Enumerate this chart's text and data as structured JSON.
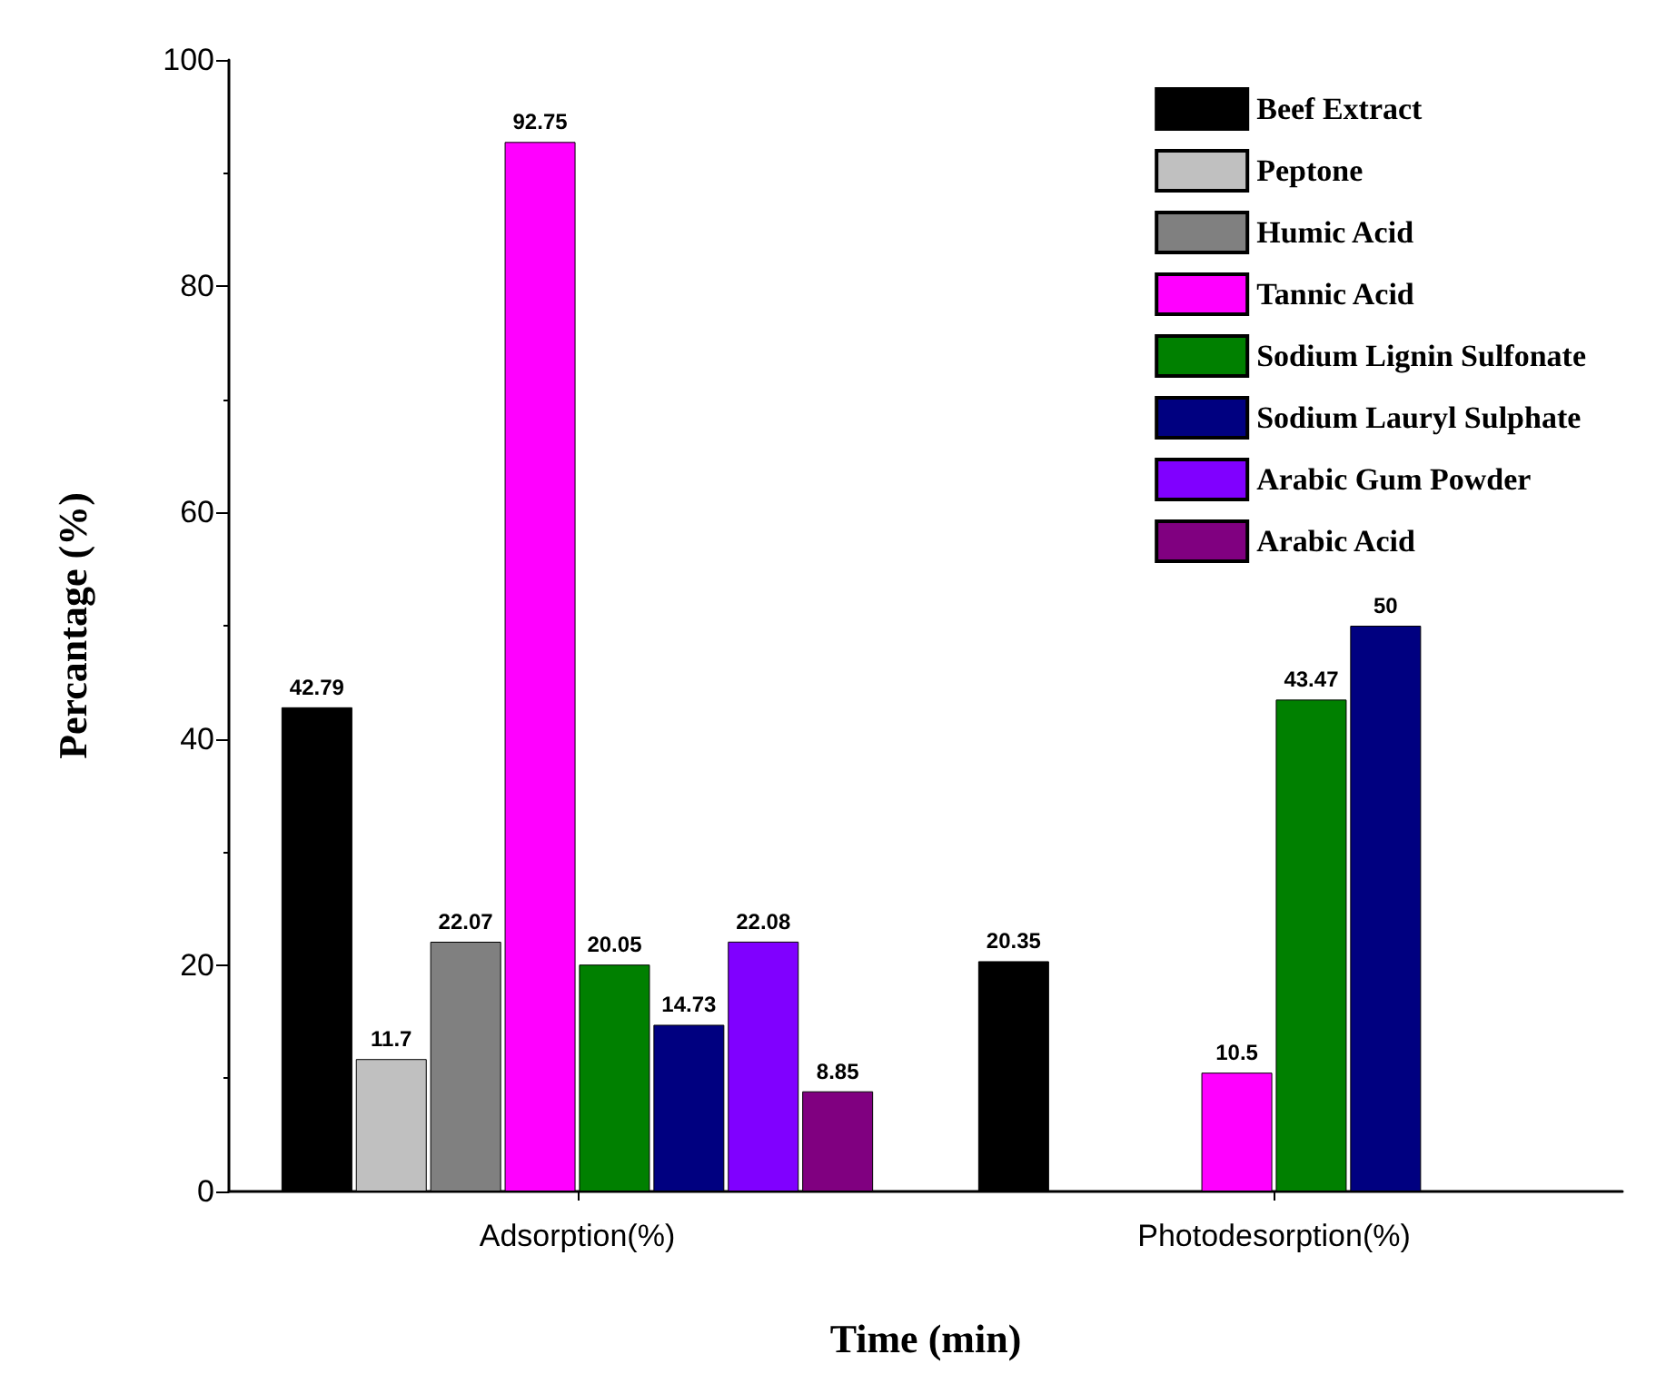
{
  "chart_data": {
    "type": "bar",
    "xlabel": "Time (min)",
    "ylabel": "Percantage (%)",
    "categories": [
      "Adsorption(%)",
      "Photodesorption(%)"
    ],
    "series": [
      {
        "name": "Beef Extract",
        "color": "#000000",
        "values": [
          42.79,
          20.35
        ]
      },
      {
        "name": "Peptone",
        "color": "#c0c0c0",
        "values": [
          11.7,
          null
        ]
      },
      {
        "name": "Humic Acid",
        "color": "#808080",
        "values": [
          22.07,
          null
        ]
      },
      {
        "name": "Tannic Acid",
        "color": "#ff00ff",
        "values": [
          92.75,
          10.5
        ]
      },
      {
        "name": "Sodium Lignin Sulfonate",
        "color": "#008000",
        "values": [
          20.05,
          43.47
        ]
      },
      {
        "name": "Sodium Lauryl Sulphate",
        "color": "#000080",
        "values": [
          14.73,
          50
        ]
      },
      {
        "name": "Arabic Gum Powder",
        "color": "#8000ff",
        "values": [
          22.08,
          null
        ]
      },
      {
        "name": "Arabic Acid",
        "color": "#800080",
        "values": [
          8.85,
          null
        ]
      }
    ],
    "ylim": [
      0,
      100
    ],
    "yticks": [
      0,
      20,
      40,
      60,
      80,
      100
    ],
    "grid": false,
    "legend": "top right",
    "data_labels": true
  }
}
